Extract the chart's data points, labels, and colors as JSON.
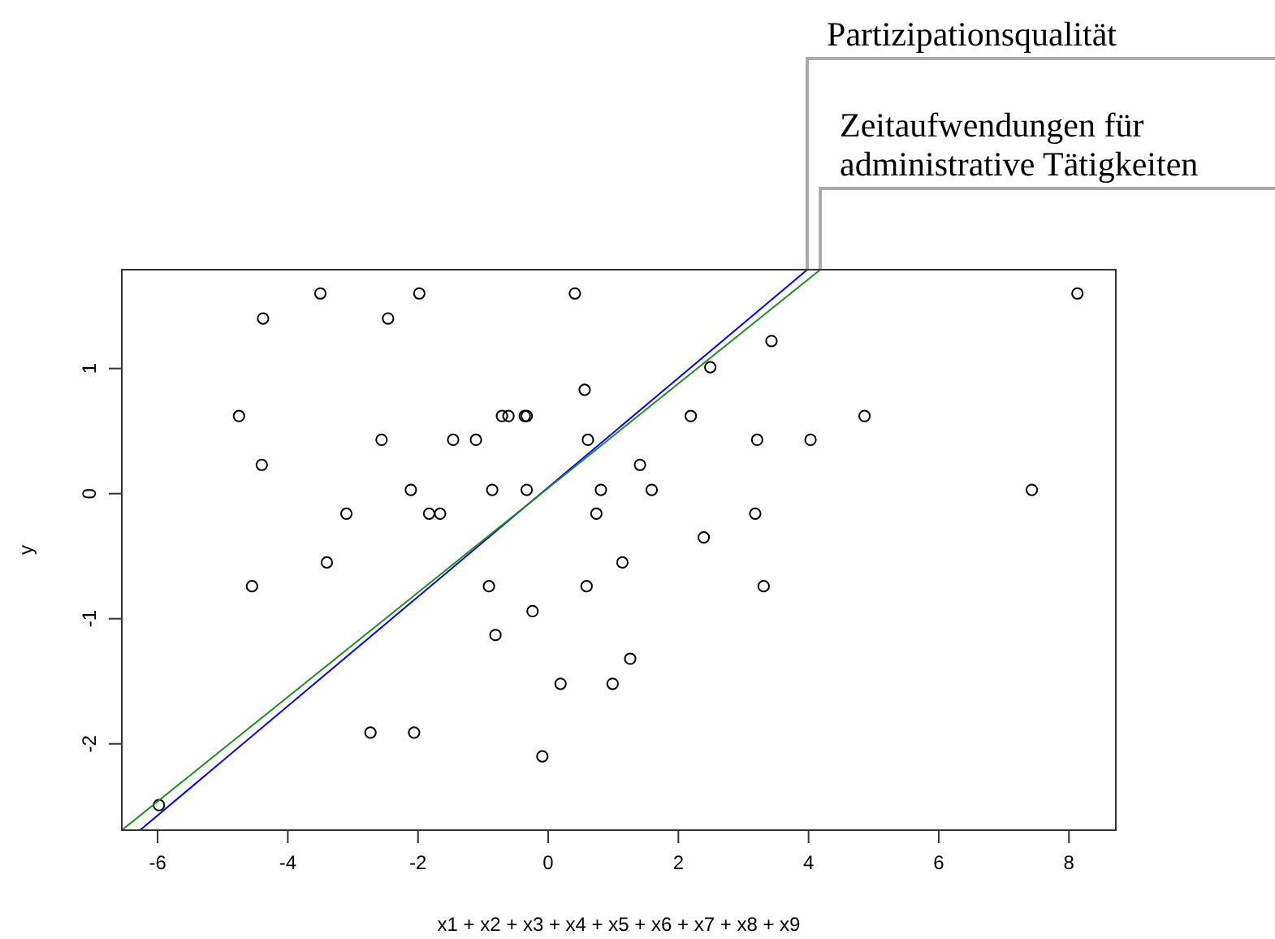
{
  "chart_data": {
    "type": "scatter",
    "xlabel": "x1 + x2 + x3 + x4 + x5 + x6 + x7 + x8 + x9",
    "ylabel": "y",
    "xlim": [
      -6.55,
      8.72
    ],
    "xticks": [
      -6,
      -4,
      -2,
      0,
      2,
      4,
      6,
      8
    ],
    "ylim": [
      -2.69,
      1.79
    ],
    "yticks": [
      -2,
      -1,
      0,
      1
    ],
    "series": [
      {
        "marker": "circle",
        "color": "#000000",
        "x": [
          -3.5,
          -4.38,
          -1.98,
          -2.46,
          0.41,
          -4.75,
          -4.4,
          -2.56,
          -1.46,
          -1.11,
          -0.71,
          -0.61,
          -0.36,
          -0.33,
          0.56,
          0.61,
          -2.11,
          -0.86,
          -0.33,
          0.81,
          -3.1,
          -1.83,
          -1.66,
          0.74,
          -3.4,
          -4.55,
          -0.91,
          0.59,
          -0.24,
          -0.81,
          0.19,
          0.99,
          -2.73,
          -2.06,
          -0.09,
          -5.98,
          8.13,
          3.43,
          2.49,
          2.19,
          4.86,
          3.21,
          4.03,
          1.41,
          1.59,
          7.43,
          3.18,
          2.39,
          1.14,
          3.31,
          1.26
        ],
        "values": [
          1.6,
          1.4,
          1.6,
          1.4,
          1.6,
          0.62,
          0.23,
          0.43,
          0.43,
          0.43,
          0.62,
          0.62,
          0.62,
          0.62,
          0.83,
          0.43,
          0.03,
          0.03,
          0.03,
          0.03,
          -0.16,
          -0.16,
          -0.16,
          -0.16,
          -0.55,
          -0.74,
          -0.74,
          -0.74,
          -0.94,
          -1.13,
          -1.52,
          -1.52,
          -1.91,
          -1.91,
          -2.1,
          -2.49,
          1.6,
          1.22,
          1.01,
          0.62,
          0.62,
          0.43,
          0.43,
          0.23,
          0.03,
          0.03,
          -0.16,
          -0.35,
          -0.55,
          -0.74,
          -1.32
        ]
      },
      {
        "type": "line",
        "name": "Partizipationsqualität",
        "color": "#0000ff",
        "x": [
          -6.27,
          3.98
        ],
        "values": [
          -2.69,
          1.79
        ]
      },
      {
        "type": "line",
        "name": "Zeitaufwendungen für administrative Tätigkeiten",
        "color": "#228b22",
        "x": [
          -6.55,
          4.18
        ],
        "values": [
          -2.69,
          1.79
        ]
      }
    ]
  }
}
